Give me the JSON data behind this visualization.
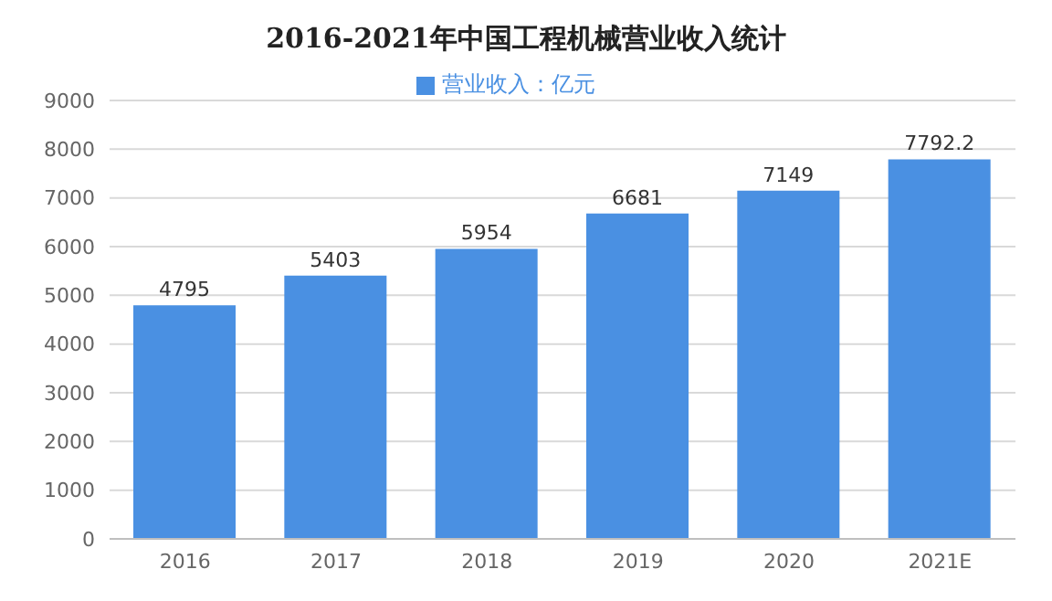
{
  "chart_data": {
    "type": "bar",
    "title": "2016-2021年中国工程机械营业收入统计",
    "categories": [
      "2016",
      "2017",
      "2018",
      "2019",
      "2020",
      "2021E"
    ],
    "series": [
      {
        "name": "营业收入：亿元",
        "color": "#4a90e2",
        "values": [
          4795,
          5403,
          5954,
          6681,
          7149,
          7792.2
        ]
      }
    ],
    "ylim": [
      0,
      9000
    ],
    "yticks": [
      0,
      1000,
      2000,
      3000,
      4000,
      5000,
      6000,
      7000,
      8000,
      9000
    ],
    "grid": "y",
    "legend": "top",
    "data_labels": true
  }
}
